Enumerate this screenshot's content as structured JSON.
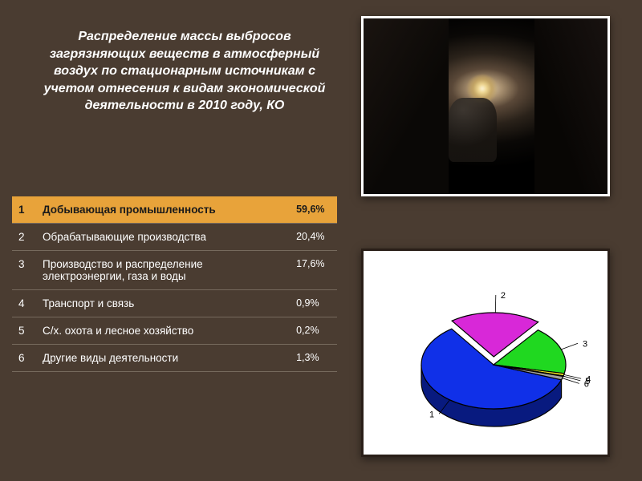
{
  "title": "Распределение массы выбросов загрязняющих веществ в атмосферный воздух по стационарным источникам с учетом отнесения к видам экономической деятельности в 2010 году, КО",
  "photo": {
    "subject": "miner-underground-drilling",
    "border_color": "#ffffff",
    "background": "#0a0a0a"
  },
  "table": {
    "highlight_row_index": 0,
    "highlight_bg": "#e8a33a",
    "highlight_text": "#1a1a1a",
    "normal_text": "#ffffff",
    "border_color": "#766a5d",
    "font_size": 13.5,
    "rows": [
      {
        "n": "1",
        "label": "Добывающая промышленность",
        "value": "59,6%"
      },
      {
        "n": "2",
        "label": "Обрабатывающие производства",
        "value": "20,4%"
      },
      {
        "n": "3",
        "label": "Производство и распределение электроэнергии, газа и воды",
        "value": "17,6%"
      },
      {
        "n": "4",
        "label": "Транспорт и связь",
        "value": "0,9%"
      },
      {
        "n": "5",
        "label": "С/х. охота и лесное хозяйство",
        "value": "0,2%"
      },
      {
        "n": "6",
        "label": "Другие виды деятельности",
        "value": "1,3%"
      }
    ]
  },
  "pie_chart": {
    "type": "pie-3d-exploded",
    "background_color": "#ffffff",
    "stroke_color": "#000000",
    "stroke_width": 1.2,
    "label_color": "#000000",
    "label_fontsize": 11,
    "slices": [
      {
        "id": "1",
        "value": 59.6,
        "color": "#1030e8",
        "exploded": false
      },
      {
        "id": "2",
        "value": 20.4,
        "color": "#d828d8",
        "exploded": true
      },
      {
        "id": "3",
        "value": 17.6,
        "color": "#20d820",
        "exploded": false
      },
      {
        "id": "4",
        "value": 0.9,
        "color": "#f0e020",
        "exploded": false
      },
      {
        "id": "5",
        "value": 0.2,
        "color": "#30b8d8",
        "exploded": false
      },
      {
        "id": "6",
        "value": 1.3,
        "color": "#a0a0a0",
        "exploded": false
      }
    ],
    "leader_labels": [
      "1",
      "2",
      "3",
      "4",
      "5",
      "6"
    ]
  },
  "page_bg": "#4a3c31"
}
